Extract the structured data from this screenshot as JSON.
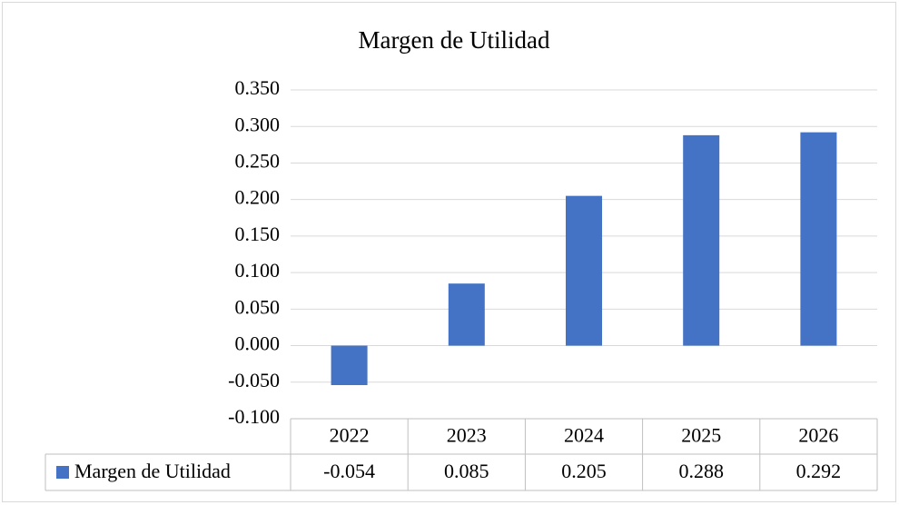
{
  "chart_data": {
    "type": "bar",
    "title": "Margen de Utilidad",
    "categories": [
      "2022",
      "2023",
      "2024",
      "2025",
      "2026"
    ],
    "series": [
      {
        "name": "Margen de Utilidad",
        "color": "#4472c4",
        "values": [
          -0.054,
          0.085,
          0.205,
          0.288,
          0.292
        ]
      }
    ],
    "ylim": [
      -0.1,
      0.35
    ],
    "yticks": [
      {
        "value": -0.1,
        "label": "-0.100"
      },
      {
        "value": -0.05,
        "label": "-0.050"
      },
      {
        "value": 0,
        "label": "0.000"
      },
      {
        "value": 0.05,
        "label": "0.050"
      },
      {
        "value": 0.1,
        "label": "0.100"
      },
      {
        "value": 0.15,
        "label": "0.150"
      },
      {
        "value": 0.2,
        "label": "0.200"
      },
      {
        "value": 0.25,
        "label": "0.250"
      },
      {
        "value": 0.3,
        "label": "0.300"
      },
      {
        "value": 0.35,
        "label": "0.350"
      }
    ],
    "grid": true,
    "data_table": true
  }
}
